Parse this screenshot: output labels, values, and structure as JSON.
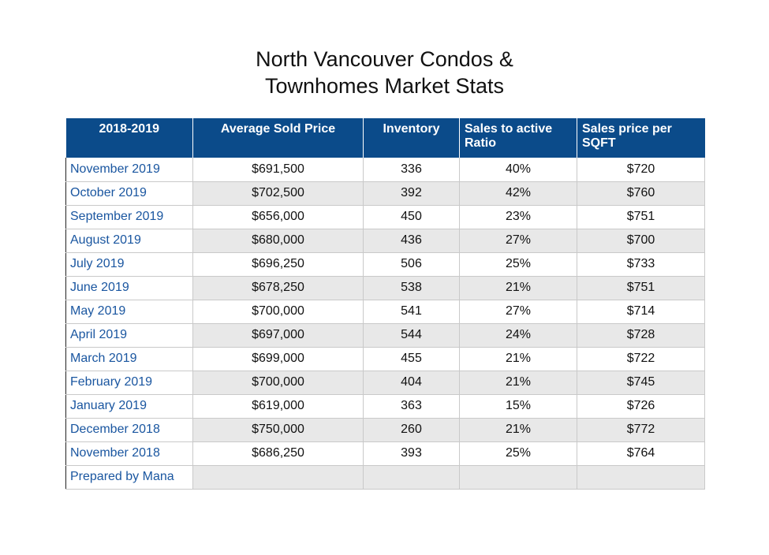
{
  "title": {
    "line1": "North Vancouver Condos &",
    "line2": "Townhomes Market Stats"
  },
  "colors": {
    "header_bg": "#0b4b8a",
    "month_text": "#1a56a0",
    "alt_row": "#e8e8e8"
  },
  "chart_data": {
    "type": "table",
    "title": "North Vancouver Condos & Townhomes Market Stats",
    "headers": [
      "2018-2019",
      "Average Sold Price",
      "Inventory",
      "Sales to active Ratio",
      "Sales price per SQFT"
    ],
    "rows": [
      [
        "November 2019",
        "$691,500",
        "336",
        "40%",
        "$720"
      ],
      [
        "October 2019",
        "$702,500",
        "392",
        "42%",
        "$760"
      ],
      [
        "September 2019",
        "$656,000",
        "450",
        "23%",
        "$751"
      ],
      [
        "August 2019",
        "$680,000",
        "436",
        "27%",
        "$700"
      ],
      [
        "July 2019",
        "$696,250",
        "506",
        "25%",
        "$733"
      ],
      [
        "June 2019",
        "$678,250",
        "538",
        "21%",
        "$751"
      ],
      [
        "May 2019",
        "$700,000",
        "541",
        "27%",
        "$714"
      ],
      [
        "April 2019",
        "$697,000",
        "544",
        "24%",
        "$728"
      ],
      [
        "March 2019",
        "$699,000",
        "455",
        "21%",
        "$722"
      ],
      [
        "February 2019",
        "$700,000",
        "404",
        "21%",
        "$745"
      ],
      [
        "January 2019",
        "$619,000",
        "363",
        "15%",
        "$726"
      ],
      [
        "December 2018",
        "$750,000",
        "260",
        "21%",
        "$772"
      ],
      [
        "November 2018",
        "$686,250",
        "393",
        "25%",
        "$764"
      ],
      [
        "Prepared by Mana",
        "",
        "",
        "",
        ""
      ]
    ]
  }
}
